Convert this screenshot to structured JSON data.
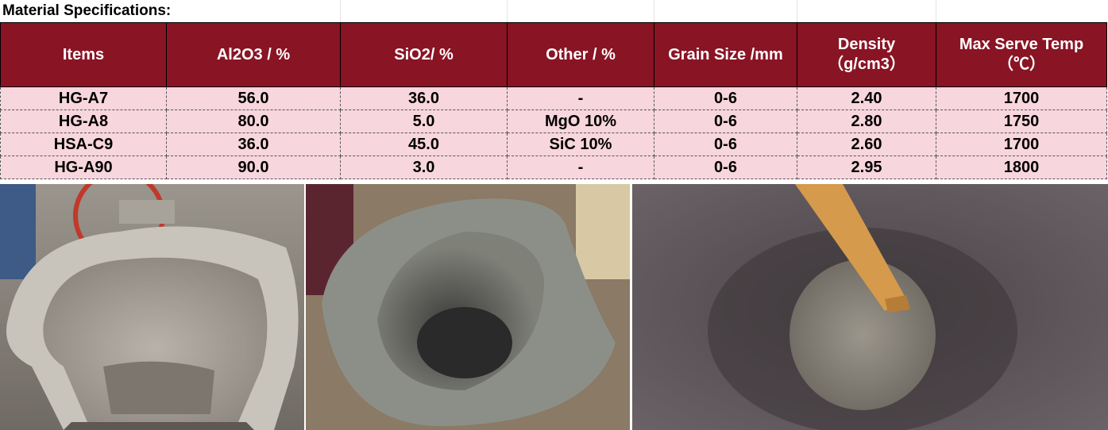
{
  "title": "Material Specifications:",
  "table": {
    "headers": [
      {
        "line1": "Items",
        "line2": ""
      },
      {
        "line1": "Al2O3 / %",
        "line2": ""
      },
      {
        "line1": "SiO2/ %",
        "line2": ""
      },
      {
        "line1": "Other / %",
        "line2": ""
      },
      {
        "line1": "Grain Size /mm",
        "line2": ""
      },
      {
        "line1": "Density",
        "line2": "（g/cm3）"
      },
      {
        "line1": "Max Serve Temp",
        "line2": "（℃）"
      }
    ],
    "rows": [
      [
        "HG-A7",
        "56.0",
        "36.0",
        "-",
        "0-6",
        "2.40",
        "1700"
      ],
      [
        "HG-A8",
        "80.0",
        "5.0",
        "MgO 10%",
        "0-6",
        "2.80",
        "1750"
      ],
      [
        "HSA-C9",
        "36.0",
        "45.0",
        "SiC 10%",
        "0-6",
        "2.60",
        "1700"
      ],
      [
        "HG-A90",
        "90.0",
        "3.0",
        "-",
        "0-6",
        "2.95",
        "1800"
      ]
    ]
  },
  "colors": {
    "header_bg": "#891424",
    "row_bg": "#f8d6de"
  },
  "photos": [
    {
      "name": "lined-ladle-photo"
    },
    {
      "name": "lined-funnel-photo"
    },
    {
      "name": "casting-hose-photo"
    }
  ]
}
